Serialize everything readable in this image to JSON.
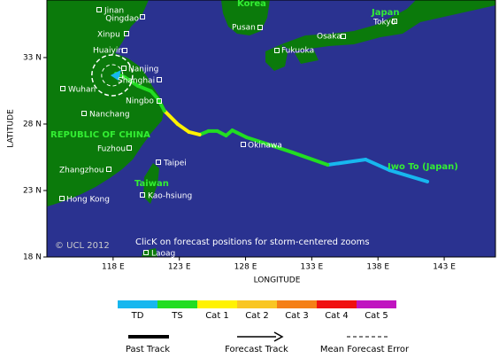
{
  "map": {
    "axis_labels": {
      "x": "LONGITUDE",
      "y": "LATITUDE"
    },
    "xlim": [
      113,
      146.87
    ],
    "ylim": [
      18,
      37.33
    ],
    "xticks": [
      {
        "value": 118,
        "label": "118 E"
      },
      {
        "value": 123,
        "label": "123 E"
      },
      {
        "value": 128,
        "label": "128 E"
      },
      {
        "value": 133,
        "label": "133 E"
      },
      {
        "value": 138,
        "label": "138 E"
      },
      {
        "value": 143,
        "label": "143 E"
      }
    ],
    "yticks": [
      {
        "value": 33,
        "label": "33 N"
      },
      {
        "value": 28,
        "label": "28 N"
      },
      {
        "value": 23,
        "label": "23 N"
      },
      {
        "value": 18,
        "label": "18 N"
      }
    ],
    "cities": [
      "Jinan",
      "Qingdao",
      "Xinpu",
      "Huaiyin",
      "Nanjing",
      "Shanghai",
      "Ningbo",
      "Wuhan",
      "Nanchang",
      "Fuzhou",
      "Zhangzhou",
      "Hong Kong",
      "Taipei",
      "Kao-hsiung",
      "Laoag",
      "Okinawa",
      "Pusan",
      "Fukuoka",
      "Osaka",
      "Tokyo"
    ],
    "regions": [
      "Japan",
      "REPUBLIC OF CHINA",
      "Taiwan",
      "Korea",
      "Iwo To (Japan)"
    ],
    "track": [
      {
        "lon": 141.73,
        "lat": 23.67,
        "cat": "TD"
      },
      {
        "lon": 138.87,
        "lat": 24.53,
        "cat": "TD"
      },
      {
        "lon": 137.07,
        "lat": 25.33,
        "cat": "TD"
      },
      {
        "lon": 134.2,
        "lat": 24.93,
        "cat": "TD"
      },
      {
        "lon": 131.53,
        "lat": 25.87,
        "cat": "TS"
      },
      {
        "lon": 129.53,
        "lat": 26.53,
        "cat": "TS"
      },
      {
        "lon": 128.07,
        "lat": 27.0,
        "cat": "TS"
      },
      {
        "lon": 127.0,
        "lat": 27.53,
        "cat": "TS"
      },
      {
        "lon": 126.53,
        "lat": 27.13,
        "cat": "TS"
      },
      {
        "lon": 125.87,
        "lat": 27.47,
        "cat": "TS"
      },
      {
        "lon": 125.2,
        "lat": 27.47,
        "cat": "TS"
      },
      {
        "lon": 124.53,
        "lat": 27.2,
        "cat": "TS"
      },
      {
        "lon": 123.73,
        "lat": 27.4,
        "cat": "Cat 1"
      },
      {
        "lon": 122.87,
        "lat": 28.0,
        "cat": "Cat 1"
      },
      {
        "lon": 121.87,
        "lat": 29.0,
        "cat": "Cat 1"
      },
      {
        "lon": 121.4,
        "lat": 29.87,
        "cat": "TS"
      },
      {
        "lon": 120.87,
        "lat": 30.47,
        "cat": "TS"
      },
      {
        "lon": 119.87,
        "lat": 30.87,
        "cat": "TS"
      },
      {
        "lon": 118.87,
        "lat": 31.53,
        "cat": "TS"
      },
      {
        "lon": 118.2,
        "lat": 31.8,
        "cat": "TS"
      }
    ],
    "copyright": "© UCL 2012",
    "hint": "ClicK on forecast positions for storm-centered zooms"
  },
  "legend": {
    "categories": [
      {
        "label": "TD",
        "color": "#17b7ef"
      },
      {
        "label": "TS",
        "color": "#22dd22"
      },
      {
        "label": "Cat 1",
        "color": "#fff200"
      },
      {
        "label": "Cat 2",
        "color": "#f9c623"
      },
      {
        "label": "Cat 3",
        "color": "#f57f17"
      },
      {
        "label": "Cat 4",
        "color": "#f01010"
      },
      {
        "label": "Cat 5",
        "color": "#c014c0"
      }
    ],
    "past_track": "Past Track",
    "forecast_track": "Forecast Track",
    "error": "Mean Forecast Error"
  }
}
